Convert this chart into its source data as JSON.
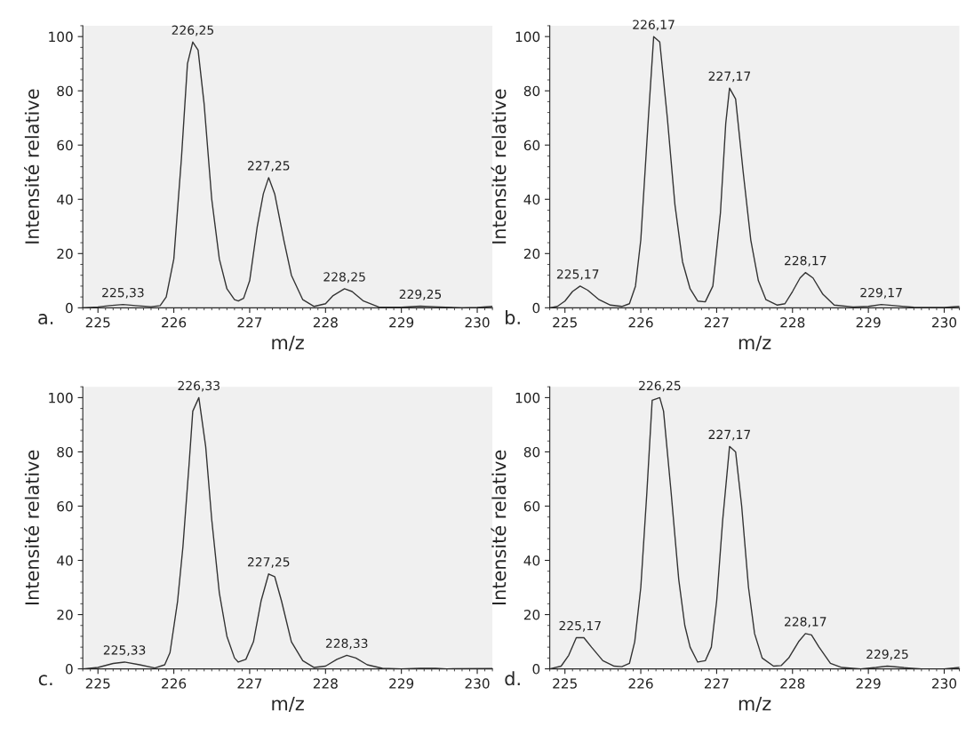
{
  "chart_data": [
    {
      "type": "line",
      "xlabel": "m/z",
      "ylabel": "Intensité relative",
      "xlim": [
        224.8,
        230.2
      ],
      "ylim": [
        0,
        104
      ],
      "xticks": [
        225,
        226,
        227,
        228,
        229,
        230
      ],
      "yticks": [
        0,
        20,
        40,
        60,
        80,
        100
      ],
      "grid": false,
      "marker": "none",
      "line_style": "solid",
      "series": [
        {
          "color": "#333333",
          "x": [
            224.8,
            225.0,
            225.15,
            225.33,
            225.5,
            225.7,
            225.82,
            225.9,
            226.0,
            226.1,
            226.18,
            226.25,
            226.32,
            226.4,
            226.5,
            226.6,
            226.7,
            226.8,
            226.85,
            226.92,
            227.0,
            227.1,
            227.18,
            227.25,
            227.33,
            227.45,
            227.55,
            227.7,
            227.85,
            228.0,
            228.1,
            228.25,
            228.35,
            228.5,
            228.7,
            229.0,
            229.25,
            229.5,
            229.8,
            230.0,
            230.2
          ],
          "values": [
            0,
            0.3,
            0.8,
            1.2,
            0.8,
            0.4,
            0.8,
            4,
            18,
            55,
            90,
            98,
            95,
            75,
            40,
            18,
            7,
            3,
            2.5,
            3.5,
            10,
            30,
            42,
            48,
            42,
            25,
            12,
            3,
            0.5,
            1.5,
            4.5,
            7,
            6,
            2.5,
            0.3,
            0.2,
            0.6,
            0.3,
            0,
            0.1,
            0.5
          ]
        }
      ],
      "annotations": [
        "a.",
        {
          "text": "225,33",
          "x": 225.33,
          "y": 1.2
        },
        {
          "text": "226,25",
          "x": 226.25,
          "y": 98
        },
        {
          "text": "227,25",
          "x": 227.25,
          "y": 48
        },
        {
          "text": "228,25",
          "x": 228.25,
          "y": 7
        },
        {
          "text": "229,25",
          "x": 229.25,
          "y": 0.6
        }
      ]
    },
    {
      "type": "line",
      "xlabel": "m/z",
      "ylabel": "Intensité relative",
      "xlim": [
        224.8,
        230.2
      ],
      "ylim": [
        0,
        104
      ],
      "xticks": [
        225,
        226,
        227,
        228,
        229,
        230
      ],
      "yticks": [
        0,
        20,
        40,
        60,
        80,
        100
      ],
      "grid": false,
      "marker": "none",
      "line_style": "solid",
      "series": [
        {
          "color": "#333333",
          "x": [
            224.8,
            224.9,
            225.0,
            225.1,
            225.2,
            225.3,
            225.45,
            225.6,
            225.75,
            225.85,
            225.93,
            226.0,
            226.1,
            226.17,
            226.25,
            226.35,
            226.45,
            226.55,
            226.65,
            226.75,
            226.85,
            226.95,
            227.05,
            227.12,
            227.17,
            227.25,
            227.35,
            227.45,
            227.55,
            227.65,
            227.8,
            227.9,
            228.0,
            228.1,
            228.17,
            228.27,
            228.4,
            228.55,
            228.8,
            229.0,
            229.17,
            229.35,
            229.6,
            230.0,
            230.2
          ],
          "values": [
            0,
            0.5,
            2.5,
            6,
            8,
            6.5,
            3,
            1,
            0.5,
            1.5,
            8,
            25,
            70,
            100,
            98,
            70,
            38,
            17,
            7,
            2.5,
            2.2,
            8,
            35,
            68,
            81,
            77,
            50,
            25,
            10,
            3,
            1,
            1.5,
            6,
            11,
            13,
            11,
            5,
            1,
            0.3,
            0.5,
            1.2,
            0.8,
            0.2,
            0.1,
            0.5
          ]
        }
      ],
      "annotations": [
        "b.",
        {
          "text": "225,17",
          "x": 225.17,
          "y": 8
        },
        {
          "text": "226,17",
          "x": 226.17,
          "y": 100
        },
        {
          "text": "227,17",
          "x": 227.17,
          "y": 81
        },
        {
          "text": "228,17",
          "x": 228.17,
          "y": 13
        },
        {
          "text": "229,17",
          "x": 229.17,
          "y": 1.2
        }
      ]
    },
    {
      "type": "line",
      "xlabel": "m/z",
      "ylabel": "Intensité relative",
      "xlim": [
        224.8,
        230.2
      ],
      "ylim": [
        0,
        104
      ],
      "xticks": [
        225,
        226,
        227,
        228,
        229,
        230
      ],
      "yticks": [
        0,
        20,
        40,
        60,
        80,
        100
      ],
      "grid": false,
      "marker": "none",
      "line_style": "solid",
      "series": [
        {
          "color": "#333333",
          "x": [
            224.8,
            225.0,
            225.2,
            225.35,
            225.55,
            225.75,
            225.88,
            225.95,
            226.05,
            226.12,
            226.2,
            226.25,
            226.33,
            226.42,
            226.5,
            226.6,
            226.7,
            226.8,
            226.85,
            226.95,
            227.05,
            227.15,
            227.25,
            227.33,
            227.42,
            227.55,
            227.7,
            227.85,
            228.0,
            228.15,
            228.28,
            228.4,
            228.55,
            228.75,
            229.0,
            229.25,
            229.45,
            229.6,
            230.2
          ],
          "values": [
            0,
            0.5,
            2,
            2.5,
            1.5,
            0.3,
            1.5,
            6,
            25,
            45,
            75,
            95,
            100,
            82,
            55,
            28,
            12,
            4,
            2.5,
            3.5,
            10,
            25,
            35,
            34,
            25,
            10,
            3,
            0.5,
            1,
            3.5,
            5,
            4,
            1.5,
            0.2,
            0,
            0.2,
            0.2,
            0,
            0.1
          ]
        }
      ],
      "annotations": [
        "c.",
        {
          "text": "225,33",
          "x": 225.35,
          "y": 2.5
        },
        {
          "text": "226,33",
          "x": 226.33,
          "y": 100
        },
        {
          "text": "227,25",
          "x": 227.25,
          "y": 35
        },
        {
          "text": "228,33",
          "x": 228.28,
          "y": 5
        }
      ]
    },
    {
      "type": "line",
      "xlabel": "m/z",
      "ylabel": "Intensité relative",
      "xlim": [
        224.8,
        230.2
      ],
      "ylim": [
        0,
        104
      ],
      "xticks": [
        225,
        226,
        227,
        228,
        229,
        230
      ],
      "yticks": [
        0,
        20,
        40,
        60,
        80,
        100
      ],
      "grid": false,
      "marker": "none",
      "line_style": "solid",
      "series": [
        {
          "color": "#333333",
          "x": [
            224.8,
            224.95,
            225.05,
            225.15,
            225.25,
            225.35,
            225.5,
            225.65,
            225.75,
            225.85,
            225.92,
            226.0,
            226.08,
            226.15,
            226.25,
            226.3,
            226.4,
            226.5,
            226.58,
            226.65,
            226.75,
            226.85,
            226.93,
            227.0,
            227.08,
            227.17,
            227.25,
            227.33,
            227.42,
            227.5,
            227.6,
            227.75,
            227.85,
            227.95,
            228.08,
            228.17,
            228.25,
            228.35,
            228.5,
            228.65,
            228.9,
            229.1,
            229.25,
            229.45,
            229.7,
            230.0,
            230.2
          ],
          "values": [
            0,
            1,
            5,
            11.5,
            11.5,
            8,
            3,
            1,
            0.8,
            2,
            10,
            30,
            65,
            99,
            100,
            95,
            65,
            33,
            16,
            8,
            2.5,
            3,
            8,
            25,
            55,
            82,
            80,
            60,
            30,
            13,
            4,
            1,
            1.2,
            4,
            10,
            13,
            12.5,
            8,
            2,
            0.5,
            0,
            0.5,
            1,
            0.5,
            0,
            0,
            0.5
          ]
        }
      ],
      "annotations": [
        "d.",
        {
          "text": "225,17",
          "x": 225.2,
          "y": 11.5
        },
        {
          "text": "226,25",
          "x": 226.25,
          "y": 100
        },
        {
          "text": "227,17",
          "x": 227.17,
          "y": 82
        },
        {
          "text": "228,17",
          "x": 228.17,
          "y": 13
        },
        {
          "text": "229,25",
          "x": 229.25,
          "y": 1
        }
      ]
    }
  ]
}
